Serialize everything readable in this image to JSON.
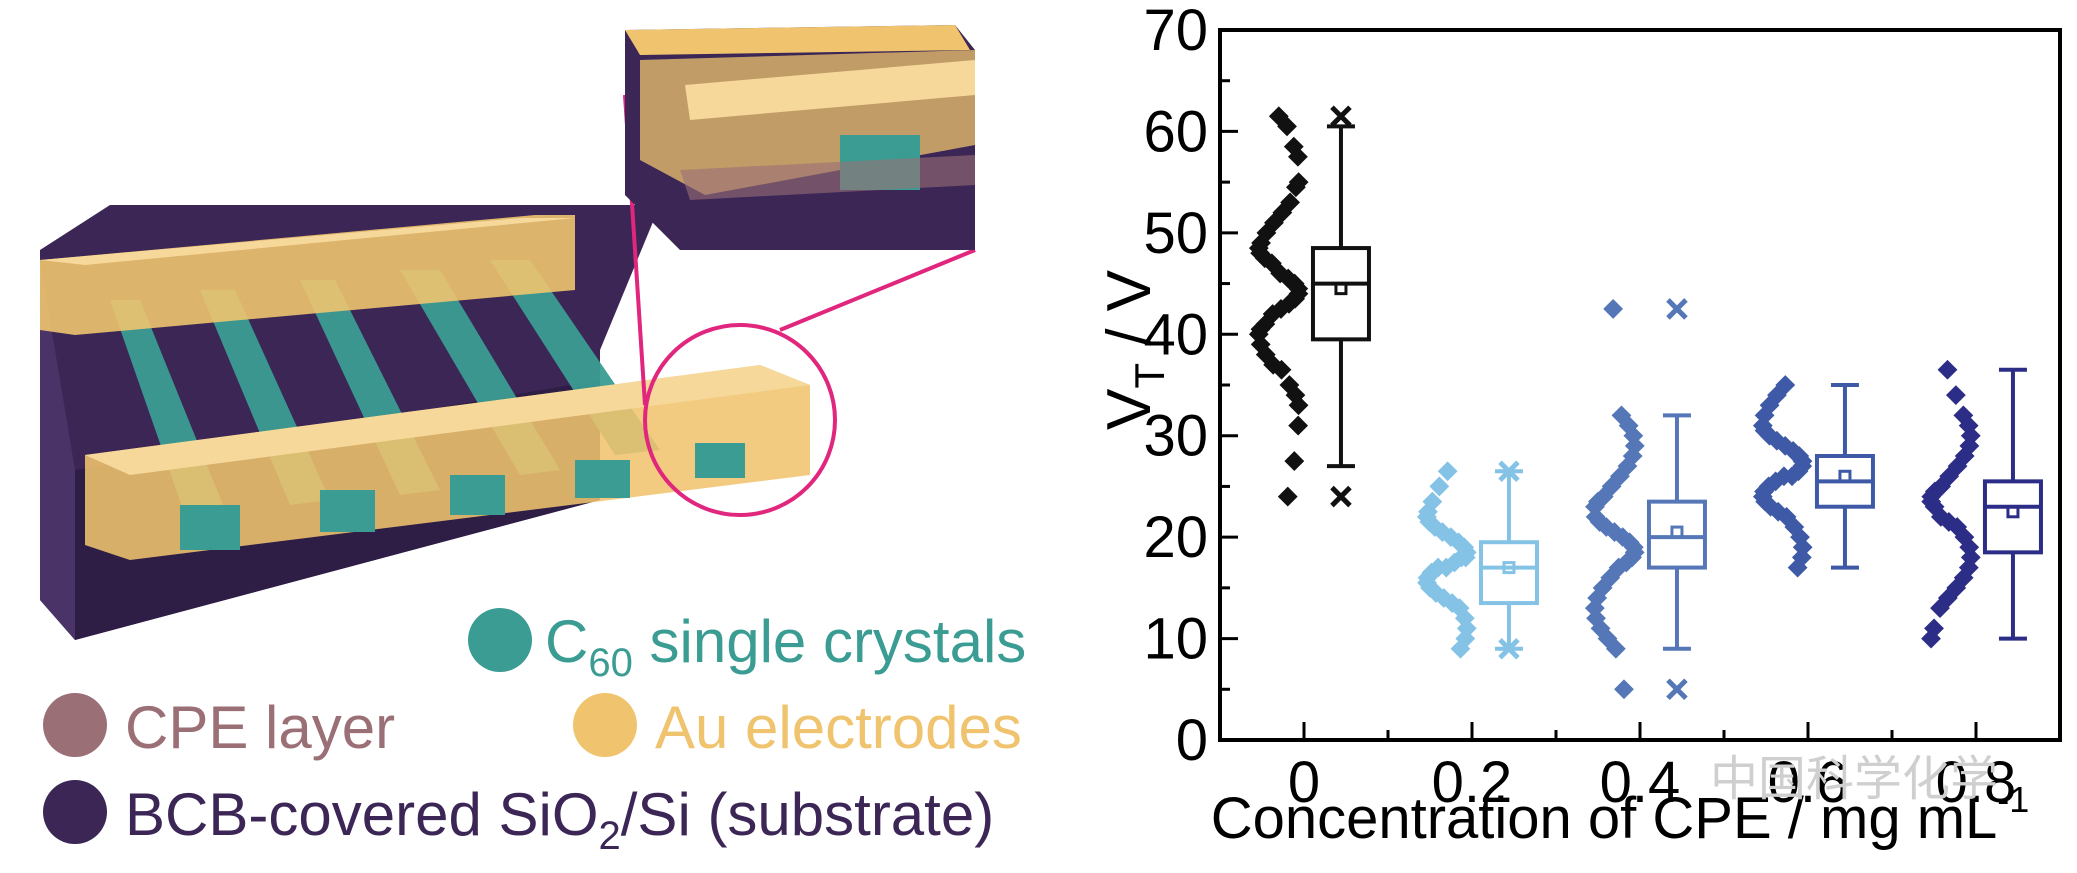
{
  "illustration": {
    "legend": [
      {
        "key": "c60",
        "label": "C",
        "sub": "60",
        "label_rest": " single crystals",
        "color": "#3a9c92",
        "text_color": "#3a9c92"
      },
      {
        "key": "cpe",
        "label": "CPE layer",
        "color": "#9a6f76",
        "text_color": "#9a6f76"
      },
      {
        "key": "au",
        "label": "Au electrodes",
        "color": "#f0c46e",
        "text_color": "#f0c46e"
      },
      {
        "key": "bcb",
        "label": "BCB-covered SiO",
        "sub": "2",
        "label_rest": "/Si (substrate)",
        "color": "#3b2656",
        "text_color": "#3b2656"
      }
    ],
    "colors": {
      "substrate": "#3b2656",
      "crystal": "#3a9c92",
      "electrode": "#f0c46e",
      "cpe": "#9a6f76",
      "highlight": "#e0267d"
    }
  },
  "watermark": {
    "text": "中国科学化学"
  },
  "chart_data": {
    "type": "box",
    "xlabel": "Concentration of CPE / mg mL",
    "xlabel_sup": "-1",
    "ylabel": "V",
    "ylabel_sub": "T",
    "ylabel_rest": " / V",
    "ylim": [
      0,
      70
    ],
    "yticks": [
      0,
      10,
      20,
      30,
      40,
      50,
      60,
      70
    ],
    "grid": false,
    "categories": [
      "0",
      "0.2",
      "0.4",
      "0.6",
      "0.8"
    ],
    "series": [
      {
        "category": "0",
        "color": "#111111",
        "box": {
          "min": 27,
          "q1": 39.5,
          "median": 45,
          "q3": 48.5,
          "max": 60.5,
          "mean": 44.5
        },
        "outliers": [
          24,
          61.5
        ],
        "points": [
          61.5,
          60.5,
          58.5,
          57.5,
          55,
          54.5,
          53,
          52,
          51,
          50,
          49,
          48.5,
          48,
          47.5,
          47,
          46,
          45.5,
          45,
          44.5,
          44,
          43.5,
          43,
          42.5,
          42,
          41,
          40.5,
          40,
          39,
          38,
          37,
          36.5,
          35,
          34,
          33,
          31,
          27.5,
          24
        ]
      },
      {
        "category": "0.2",
        "color": "#84c3e6",
        "box": {
          "min": 9,
          "q1": 13.5,
          "median": 17,
          "q3": 19.5,
          "max": 26.5,
          "mean": 17
        },
        "outliers": [
          9,
          26.5
        ],
        "points": [
          26.5,
          25,
          23.5,
          22.5,
          22,
          21.5,
          21,
          20.5,
          20,
          19.5,
          19,
          18.5,
          18,
          18,
          17.5,
          17,
          17,
          16.5,
          16,
          15.5,
          15,
          14.5,
          14,
          13.5,
          13,
          12,
          11,
          10,
          9
        ]
      },
      {
        "category": "0.4",
        "color": "#5577b7",
        "box": {
          "min": 9,
          "q1": 17,
          "median": 20,
          "q3": 23.5,
          "max": 32,
          "mean": 20.5
        },
        "outliers": [
          5,
          42.5
        ],
        "points": [
          42.5,
          32,
          31,
          30,
          29,
          28,
          27,
          26,
          25,
          24,
          23.5,
          23,
          22,
          21.5,
          21,
          20.5,
          20,
          19.5,
          19,
          18.5,
          18,
          17.5,
          17,
          16,
          15,
          14,
          13,
          12,
          11,
          10,
          9,
          5
        ]
      },
      {
        "category": "0.6",
        "color": "#3e59a6",
        "box": {
          "min": 17,
          "q1": 23,
          "median": 25.5,
          "q3": 28,
          "max": 35,
          "mean": 26
        },
        "outliers": [],
        "points": [
          35,
          34,
          33,
          32,
          31,
          30.5,
          30,
          29.5,
          29,
          28.5,
          28,
          27.5,
          27,
          26.5,
          26,
          26,
          25.5,
          25,
          24.5,
          24,
          23.5,
          23,
          22.5,
          22,
          21,
          20,
          19,
          18,
          17
        ]
      },
      {
        "category": "0.8",
        "color": "#2c2d86",
        "box": {
          "min": 10,
          "q1": 18.5,
          "median": 23,
          "q3": 25.5,
          "max": 36.5,
          "mean": 22.5
        },
        "outliers": [],
        "points": [
          36.5,
          34,
          32,
          31,
          30,
          29,
          28,
          27,
          26,
          25,
          24.5,
          24,
          23.5,
          23,
          22,
          21.5,
          21,
          20,
          19,
          18,
          17,
          16,
          15,
          14,
          13,
          11,
          10
        ]
      }
    ]
  }
}
